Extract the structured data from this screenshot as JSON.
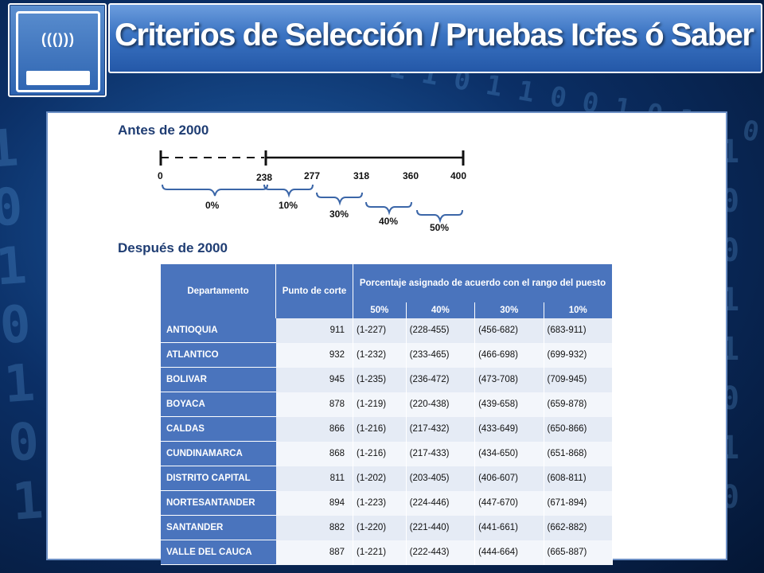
{
  "header": {
    "title": "Criterios de Selección / Pruebas Icfes ó Saber",
    "icon_label": "((()))"
  },
  "sections": {
    "before": "Antes de 2000",
    "after": "Después de 2000"
  },
  "timeline": {
    "ticks": [
      "0",
      "238",
      "277",
      "318",
      "360",
      "400"
    ],
    "brackets": [
      "0%",
      "10%",
      "30%",
      "40%",
      "50%"
    ]
  },
  "table": {
    "headers": {
      "departamento": "Departamento",
      "punto": "Punto de corte",
      "porcentaje": "Porcentaje asignado de acuerdo con el rango del puesto"
    },
    "percent_headers": [
      "50%",
      "40%",
      "30%",
      "10%"
    ],
    "rows": [
      {
        "dept": "ANTIOQUIA",
        "punto": "911",
        "r50": "(1-227)",
        "r40": "(228-455)",
        "r30": "(456-682)",
        "r10": "(683-911)"
      },
      {
        "dept": "ATLANTICO",
        "punto": "932",
        "r50": "(1-232)",
        "r40": "(233-465)",
        "r30": "(466-698)",
        "r10": "(699-932)"
      },
      {
        "dept": "BOLIVAR",
        "punto": "945",
        "r50": "(1-235)",
        "r40": "(236-472)",
        "r30": "(473-708)",
        "r10": "(709-945)"
      },
      {
        "dept": "BOYACA",
        "punto": "878",
        "r50": "(1-219)",
        "r40": "(220-438)",
        "r30": "(439-658)",
        "r10": "(659-878)"
      },
      {
        "dept": "CALDAS",
        "punto": "866",
        "r50": "(1-216)",
        "r40": "(217-432)",
        "r30": "(433-649)",
        "r10": "(650-866)"
      },
      {
        "dept": "CUNDINAMARCA",
        "punto": "868",
        "r50": "(1-216)",
        "r40": "(217-433)",
        "r30": "(434-650)",
        "r10": "(651-868)"
      },
      {
        "dept": "DISTRITO CAPITAL",
        "punto": "811",
        "r50": "(1-202)",
        "r40": "(203-405)",
        "r30": "(406-607)",
        "r10": "(608-811)"
      },
      {
        "dept": "NORTESANTANDER",
        "punto": "894",
        "r50": "(1-223)",
        "r40": "(224-446)",
        "r30": "(447-670)",
        "r10": "(671-894)"
      },
      {
        "dept": "SANTANDER",
        "punto": "882",
        "r50": "(1-220)",
        "r40": "(221-440)",
        "r30": "(441-661)",
        "r10": "(662-882)"
      },
      {
        "dept": "VALLE DEL CAUCA",
        "punto": "887",
        "r50": "(1-221)",
        "r40": "(222-443)",
        "r30": "(444-664)",
        "r10": "(665-887)"
      }
    ]
  },
  "colors": {
    "banner": "#3a73c2",
    "table_header": "#4a74bd",
    "section_title": "#1f3d73"
  }
}
